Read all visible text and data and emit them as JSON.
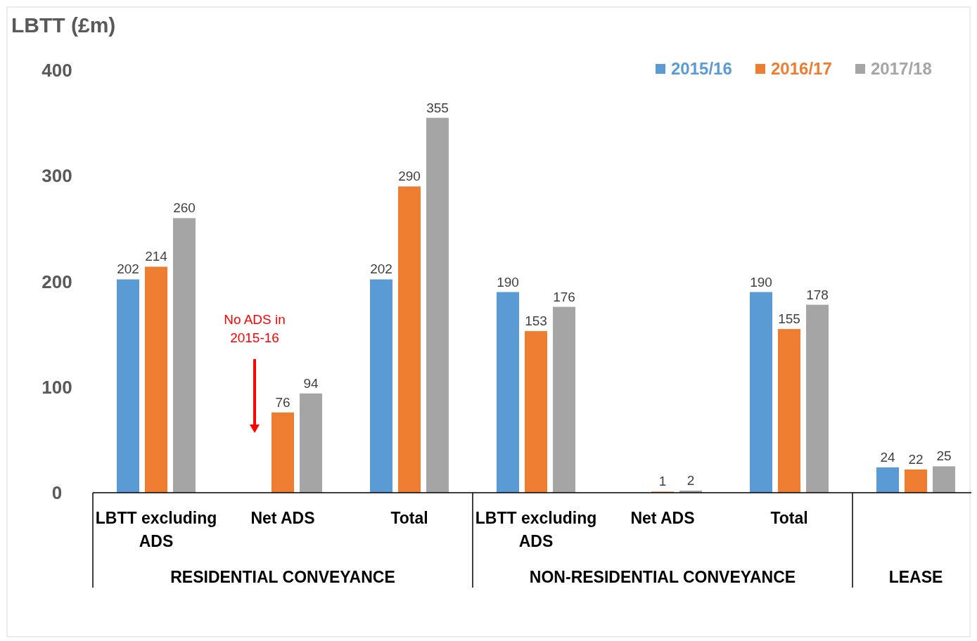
{
  "chart_data": {
    "type": "bar",
    "ylabel": "LBTT (£m)",
    "categories": [
      "LBTT excluding ADS",
      "Net ADS",
      "Total",
      "LBTT excluding ADS",
      "Net ADS",
      "Total",
      null
    ],
    "series": [
      {
        "name": "2015/16",
        "color": "#5b9bd5",
        "values": [
          202,
          null,
          202,
          190,
          null,
          190,
          24
        ]
      },
      {
        "name": "2016/17",
        "color": "#ed7d31",
        "values": [
          214,
          76,
          290,
          153,
          1,
          155,
          22
        ]
      },
      {
        "name": "2017/18",
        "color": "#a5a5a5",
        "values": [
          260,
          94,
          355,
          176,
          2,
          178,
          25
        ]
      }
    ],
    "ylim": [
      0,
      400
    ],
    "yticks": [
      0,
      100,
      200,
      300,
      400
    ],
    "grid": false,
    "legend": "top right",
    "data_labels": true,
    "annotations": [
      "RESIDENTIAL CONVEYANCE",
      "NON-RESIDENTIAL CONVEYANCE",
      "LEASE",
      "No ADS in 2015-16"
    ]
  }
}
